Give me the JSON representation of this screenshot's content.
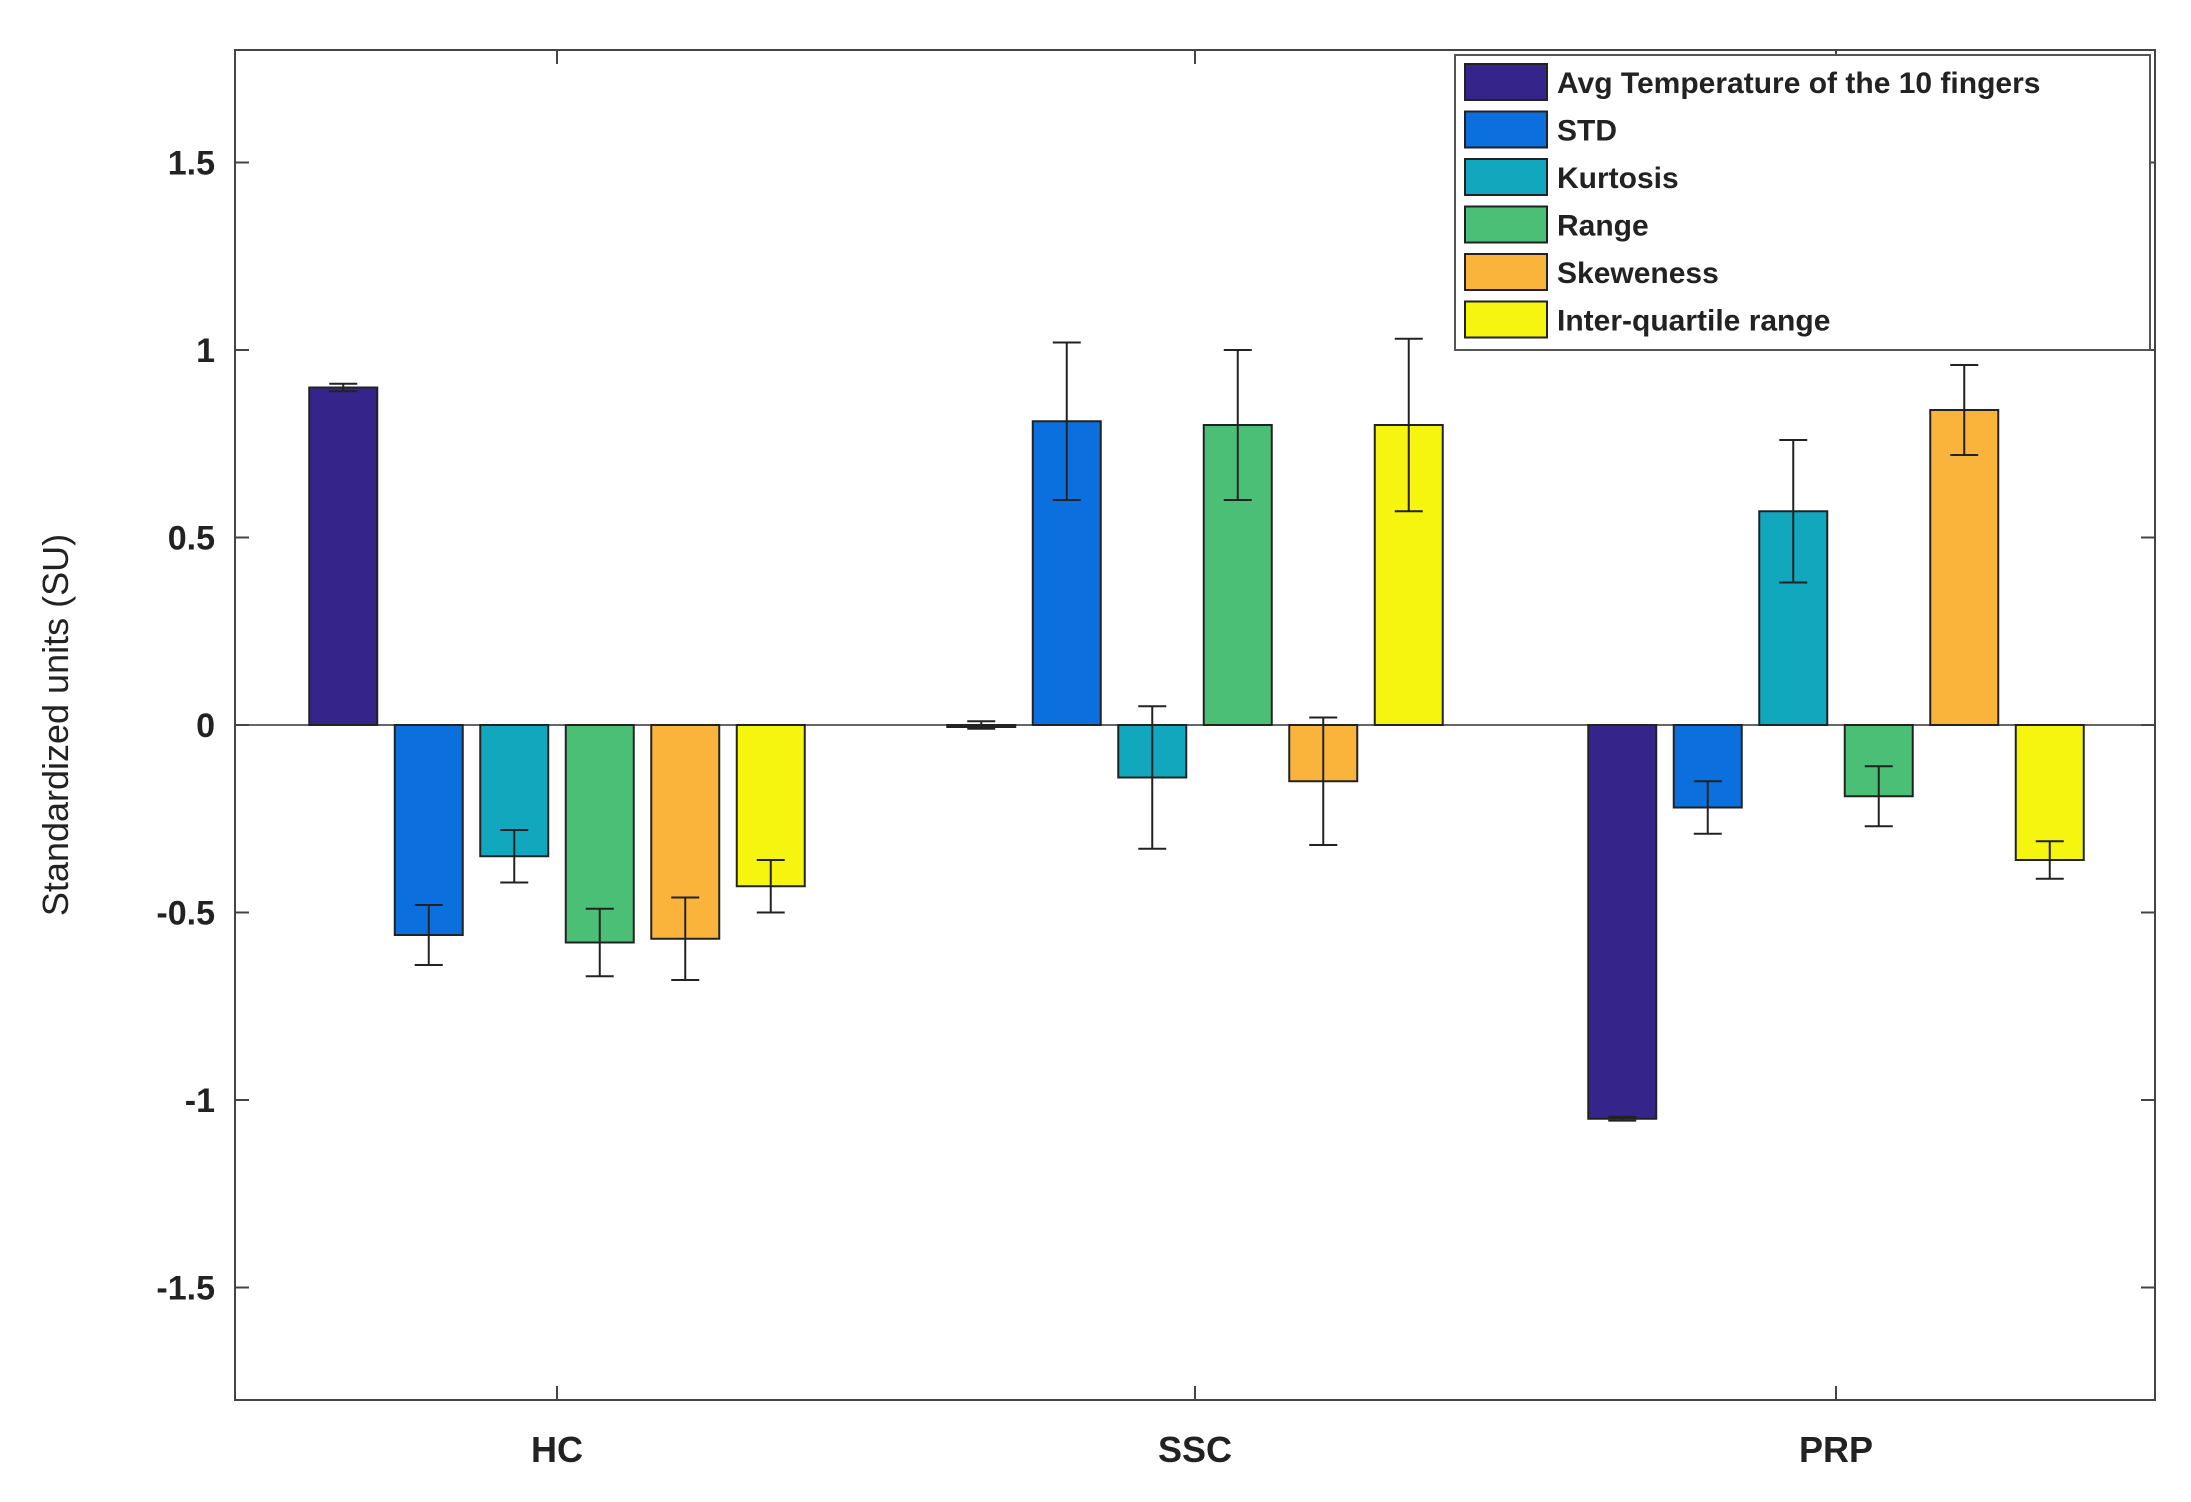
{
  "chart_data": {
    "type": "bar",
    "title": "",
    "xlabel": "",
    "ylabel": "Standardized units (SU)",
    "ylim": [
      -1.8,
      1.8
    ],
    "yticks": [
      -1.5,
      -1,
      -0.5,
      0,
      0.5,
      1,
      1.5
    ],
    "ytick_labels": [
      "-1.5",
      "-1",
      "-0.5",
      "0",
      "0.5",
      "1",
      "1.5"
    ],
    "categories": [
      "HC",
      "SSC",
      "PRP"
    ],
    "legend_position": "top-right",
    "series": [
      {
        "name": "Avg Temperature of the 10 fingers",
        "color": "#35248A",
        "values": [
          0.9,
          0.0,
          -1.05
        ],
        "errors": [
          0.01,
          0.01,
          0.005
        ]
      },
      {
        "name": "STD",
        "color": "#0B6FDD",
        "values": [
          -0.56,
          0.81,
          -0.22
        ],
        "errors": [
          0.08,
          0.21,
          0.07
        ]
      },
      {
        "name": "Kurtosis",
        "color": "#11A8BE",
        "values": [
          -0.35,
          -0.14,
          0.57
        ],
        "errors": [
          0.07,
          0.19,
          0.19
        ]
      },
      {
        "name": "Range",
        "color": "#4CBF76",
        "values": [
          -0.58,
          0.8,
          -0.19
        ],
        "errors": [
          0.09,
          0.2,
          0.08
        ]
      },
      {
        "name": "Skeweness",
        "color": "#FAB43C",
        "values": [
          -0.57,
          -0.15,
          0.84
        ],
        "errors": [
          0.11,
          0.17,
          0.12
        ]
      },
      {
        "name": "Inter-quartile range",
        "color": "#F5F50F",
        "values": [
          -0.43,
          0.8,
          -0.36
        ],
        "errors": [
          0.07,
          0.23,
          0.05
        ]
      }
    ]
  }
}
